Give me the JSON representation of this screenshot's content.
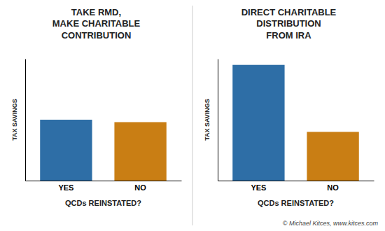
{
  "chart_data": [
    {
      "type": "bar",
      "title": "TAKE RMD,\nMAKE CHARITABLE\nCONTRIBUTION",
      "categories": [
        "YES",
        "NO"
      ],
      "values": [
        50,
        48
      ],
      "colors": [
        "#2E6EA6",
        "#C97E14"
      ],
      "xlabel": "QCDs REINSTATED?",
      "ylabel": "TAX SAVINGS",
      "ylim": [
        0,
        100
      ],
      "tick_labels": "x",
      "grid": false
    },
    {
      "type": "bar",
      "title": "DIRECT CHARITABLE\nDISTRIBUTION\nFROM IRA",
      "categories": [
        "YES",
        "NO"
      ],
      "values": [
        95,
        40
      ],
      "colors": [
        "#2E6EA6",
        "#C97E14"
      ],
      "xlabel": "QCDs REINSTATED?",
      "ylabel": "TAX SAVINGS",
      "ylim": [
        0,
        100
      ],
      "tick_labels": "x",
      "grid": false,
      "annotations": [
        "© Michael Kitces, www.kitces.com"
      ]
    }
  ]
}
